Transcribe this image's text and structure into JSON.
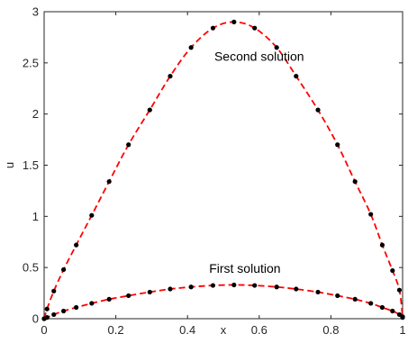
{
  "chart_data": {
    "type": "line",
    "title": "",
    "xlabel": "x",
    "ylabel": "u",
    "xlim": [
      0,
      1
    ],
    "ylim": [
      0,
      3
    ],
    "xticks": [
      0,
      0.2,
      0.4,
      0.6,
      0.8,
      1
    ],
    "xtick_labels": [
      "0",
      "0.2",
      "0.4",
      "0.6",
      "0.8",
      "1"
    ],
    "yticks": [
      0,
      0.5,
      1,
      1.5,
      2,
      2.5,
      3
    ],
    "ytick_labels": [
      "0",
      "0.5",
      "1",
      "1.5",
      "2",
      "2.5",
      "3"
    ],
    "grid": false,
    "line_color": "#ff0000",
    "marker_color": "#000000",
    "series": [
      {
        "style": "dashed line with dot markers",
        "x": [
          0,
          0.0081,
          0.027,
          0.0543,
          0.0895,
          0.1327,
          0.1813,
          0.2354,
          0.2947,
          0.3517,
          0.4099,
          0.471,
          0.5297,
          0.5872,
          0.6487,
          0.703,
          0.7639,
          0.8184,
          0.8673,
          0.9113,
          0.9433,
          0.9719,
          0.9911,
          1
        ],
        "y": [
          0,
          0.095,
          0.27,
          0.48,
          0.72,
          1.01,
          1.34,
          1.7,
          2.04,
          2.37,
          2.65,
          2.84,
          2.9,
          2.84,
          2.65,
          2.37,
          2.04,
          1.7,
          1.34,
          1.02,
          0.72,
          0.47,
          0.28,
          0.02
        ]
      },
      {
        "style": "dashed line with dot markers",
        "x": [
          0,
          0.0081,
          0.027,
          0.0543,
          0.0895,
          0.1327,
          0.1813,
          0.2354,
          0.2947,
          0.3517,
          0.4099,
          0.471,
          0.5297,
          0.5872,
          0.6487,
          0.703,
          0.7639,
          0.8184,
          0.8673,
          0.9113,
          0.9433,
          0.9719,
          0.9911,
          1
        ],
        "y": [
          0,
          0.012,
          0.04,
          0.075,
          0.11,
          0.15,
          0.19,
          0.225,
          0.26,
          0.29,
          0.31,
          0.325,
          0.33,
          0.325,
          0.31,
          0.29,
          0.26,
          0.225,
          0.19,
          0.15,
          0.11,
          0.075,
          0.04,
          0.012
        ]
      }
    ],
    "annotations": [
      {
        "text": "Second solution",
        "x": 0.6,
        "y": 2.52
      },
      {
        "text": "First solution",
        "x": 0.56,
        "y": 0.45
      }
    ]
  }
}
